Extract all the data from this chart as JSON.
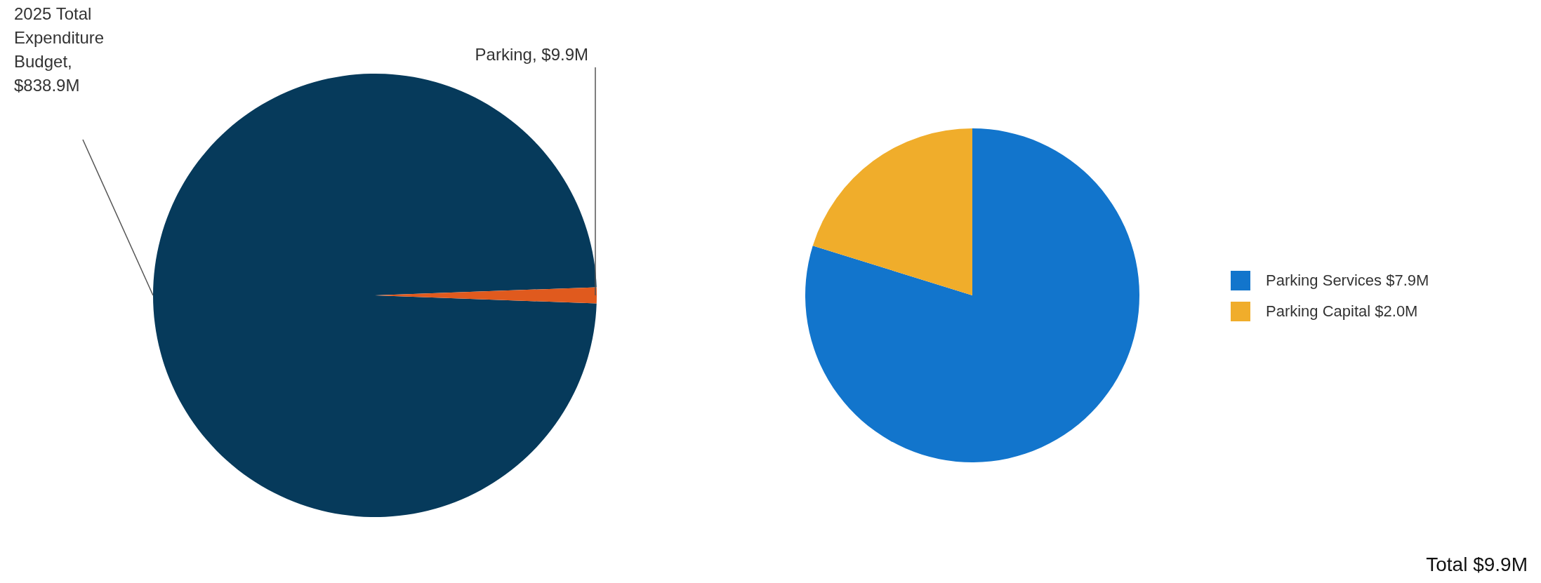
{
  "chart_data": [
    {
      "type": "pie",
      "categories": [
        "2025 Total Expenditure Budget, $838.9M",
        "Parking, $9.9M"
      ],
      "values": [
        838.9,
        9.9
      ],
      "colors": [
        "#063a5b",
        "#e05a1e"
      ],
      "legend": false
    },
    {
      "type": "pie",
      "categories": [
        "Parking Services",
        "Parking Capital"
      ],
      "values": [
        7.9,
        2.0
      ],
      "value_labels": [
        "$7.9M",
        "$2.0M"
      ],
      "colors": [
        "#1275cc",
        "#f0ad2b"
      ],
      "legend": "right",
      "annotations": [
        "Total $9.9M"
      ]
    }
  ]
}
